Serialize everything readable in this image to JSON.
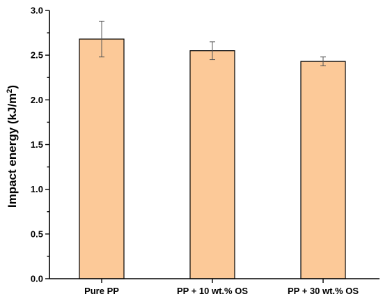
{
  "chart_data": {
    "type": "bar",
    "categories": [
      "Pure PP",
      "PP + 10 wt.% OS",
      "PP + 30 wt.% OS"
    ],
    "values": [
      2.68,
      2.55,
      2.43
    ],
    "errors": [
      0.2,
      0.1,
      0.05
    ],
    "title": "",
    "xlabel": "",
    "ylabel": "Impact energy (kJ/m²)",
    "ylabel_main": "Impact energy (kJ/m",
    "ylabel_sup": "2",
    "ylabel_end": ")",
    "ylim": [
      0,
      3.0
    ],
    "yticks": [
      "0.0",
      "0.5",
      "1.0",
      "1.5",
      "2.0",
      "2.5",
      "3.0"
    ],
    "bar_color": "#FCC998",
    "grid": false
  }
}
